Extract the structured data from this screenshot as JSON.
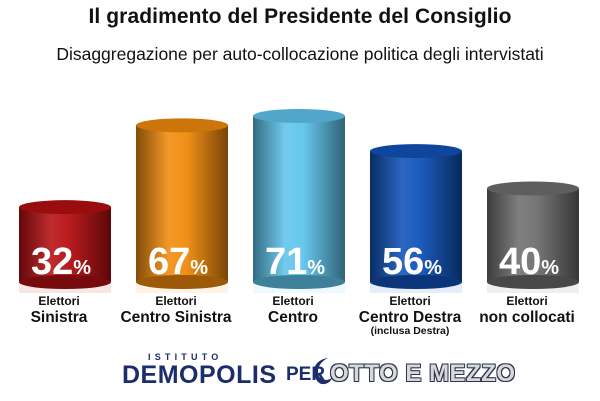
{
  "title": "Il gradimento del Presidente del Consiglio",
  "subtitle": "Disaggregazione per auto-collocazione politica degli intervistati",
  "colors": {
    "sinistra": "#b50f12",
    "centro_sinistra": "#f08a0c",
    "centro": "#5fc4ec",
    "centro_destra": "#0f52b8",
    "non_collocati": "#6e6e6e"
  },
  "chart_data": {
    "type": "bar",
    "categories": [
      "Elettori Sinistra",
      "Elettori Centro Sinistra",
      "Elettori Centro",
      "Elettori Centro Destra (inclusa Destra)",
      "Elettori non collocati"
    ],
    "values": [
      32,
      67,
      71,
      56,
      40
    ],
    "value_labels": [
      "32%",
      "67%",
      "71%",
      "56%",
      "40%"
    ],
    "category_labels": [
      {
        "line1": "Elettori",
        "line2": "Sinistra",
        "line3": ""
      },
      {
        "line1": "Elettori",
        "line2": "Centro Sinistra",
        "line3": ""
      },
      {
        "line1": "Elettori",
        "line2": "Centro",
        "line3": ""
      },
      {
        "line1": "Elettori",
        "line2": "Centro Destra",
        "line3": "(inclusa Destra)"
      },
      {
        "line1": "Elettori",
        "line2": "non collocati",
        "line3": ""
      }
    ],
    "title": "Il gradimento del Presidente del Consiglio",
    "subtitle": "Disaggregazione per auto-collocazione politica degli intervistati",
    "unit": "%",
    "ylim": [
      0,
      80
    ],
    "grid": false,
    "legend": "none"
  },
  "footer": {
    "istituto": "ISTITUTO",
    "demopolis": "DEMOPOLIS",
    "per": "PER",
    "otto": "OTTO E MEZZO"
  }
}
